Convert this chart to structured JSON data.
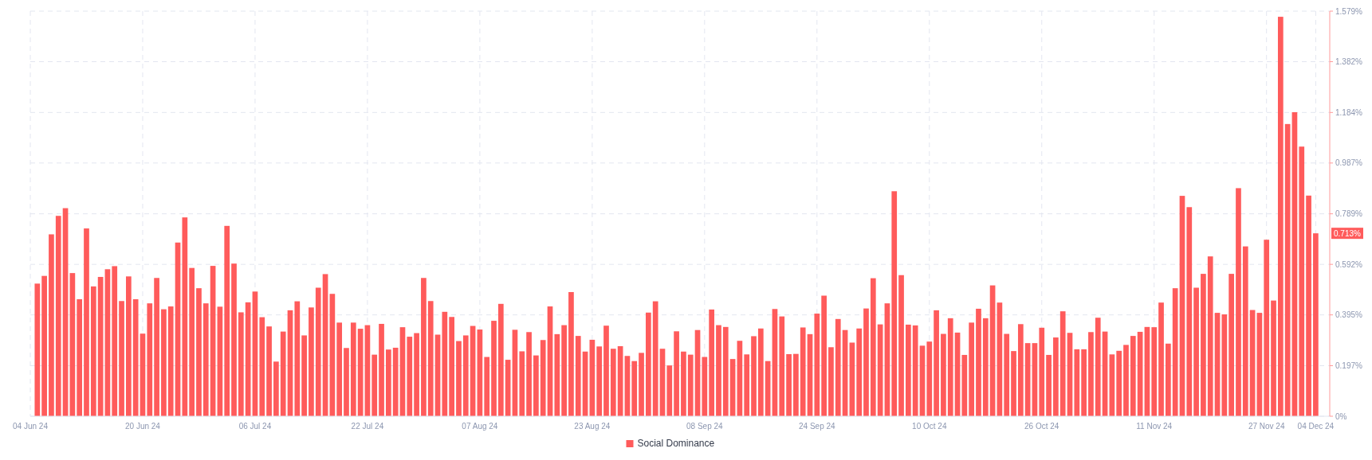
{
  "chart_data": {
    "type": "bar",
    "x": [
      "2024-06-05",
      "2024-06-06",
      "2024-06-07",
      "2024-06-08",
      "2024-06-09",
      "2024-06-10",
      "2024-06-11",
      "2024-06-12",
      "2024-06-13",
      "2024-06-14",
      "2024-06-15",
      "2024-06-16",
      "2024-06-17",
      "2024-06-18",
      "2024-06-19",
      "2024-06-20",
      "2024-06-21",
      "2024-06-22",
      "2024-06-23",
      "2024-06-24",
      "2024-06-25",
      "2024-06-26",
      "2024-06-27",
      "2024-06-28",
      "2024-06-29",
      "2024-06-30",
      "2024-07-01",
      "2024-07-02",
      "2024-07-03",
      "2024-07-04",
      "2024-07-05",
      "2024-07-06",
      "2024-07-07",
      "2024-07-08",
      "2024-07-09",
      "2024-07-10",
      "2024-07-11",
      "2024-07-12",
      "2024-07-13",
      "2024-07-14",
      "2024-07-15",
      "2024-07-16",
      "2024-07-17",
      "2024-07-18",
      "2024-07-19",
      "2024-07-20",
      "2024-07-21",
      "2024-07-22",
      "2024-07-23",
      "2024-07-24",
      "2024-07-25",
      "2024-07-26",
      "2024-07-27",
      "2024-07-28",
      "2024-07-29",
      "2024-07-30",
      "2024-07-31",
      "2024-08-01",
      "2024-08-02",
      "2024-08-03",
      "2024-08-04",
      "2024-08-05",
      "2024-08-06",
      "2024-08-07",
      "2024-08-08",
      "2024-08-09",
      "2024-08-10",
      "2024-08-11",
      "2024-08-12",
      "2024-08-13",
      "2024-08-14",
      "2024-08-15",
      "2024-08-16",
      "2024-08-17",
      "2024-08-18",
      "2024-08-19",
      "2024-08-20",
      "2024-08-21",
      "2024-08-22",
      "2024-08-23",
      "2024-08-24",
      "2024-08-25",
      "2024-08-26",
      "2024-08-27",
      "2024-08-28",
      "2024-08-29",
      "2024-08-30",
      "2024-08-31",
      "2024-09-01",
      "2024-09-02",
      "2024-09-03",
      "2024-09-04",
      "2024-09-05",
      "2024-09-06",
      "2024-09-07",
      "2024-09-08",
      "2024-09-09",
      "2024-09-10",
      "2024-09-11",
      "2024-09-12",
      "2024-09-13",
      "2024-09-14",
      "2024-09-15",
      "2024-09-16",
      "2024-09-17",
      "2024-09-18",
      "2024-09-19",
      "2024-09-20",
      "2024-09-21",
      "2024-09-22",
      "2024-09-23",
      "2024-09-24",
      "2024-09-25",
      "2024-09-26",
      "2024-09-27",
      "2024-09-28",
      "2024-09-29",
      "2024-09-30",
      "2024-10-01",
      "2024-10-02",
      "2024-10-03",
      "2024-10-04",
      "2024-10-05",
      "2024-10-06",
      "2024-10-07",
      "2024-10-08",
      "2024-10-09",
      "2024-10-10",
      "2024-10-11",
      "2024-10-12",
      "2024-10-13",
      "2024-10-14",
      "2024-10-15",
      "2024-10-16",
      "2024-10-17",
      "2024-10-18",
      "2024-10-19",
      "2024-10-20",
      "2024-10-21",
      "2024-10-22",
      "2024-10-23",
      "2024-10-24",
      "2024-10-25",
      "2024-10-26",
      "2024-10-27",
      "2024-10-28",
      "2024-10-29",
      "2024-10-30",
      "2024-10-31",
      "2024-11-01",
      "2024-11-02",
      "2024-11-03",
      "2024-11-04",
      "2024-11-05",
      "2024-11-06",
      "2024-11-07",
      "2024-11-08",
      "2024-11-09",
      "2024-11-10",
      "2024-11-11",
      "2024-11-12",
      "2024-11-13",
      "2024-11-14",
      "2024-11-15",
      "2024-11-16",
      "2024-11-17",
      "2024-11-18",
      "2024-11-19",
      "2024-11-20",
      "2024-11-21",
      "2024-11-22",
      "2024-11-23",
      "2024-11-24",
      "2024-11-25",
      "2024-11-26",
      "2024-11-27",
      "2024-11-28",
      "2024-11-29",
      "2024-11-30",
      "2024-12-01",
      "2024-12-02",
      "2024-12-03",
      "2024-12-04"
    ],
    "series": [
      {
        "name": "Social Dominance",
        "color": "#ff5b5b",
        "values": [
          0.517,
          0.547,
          0.709,
          0.781,
          0.811,
          0.558,
          0.456,
          0.732,
          0.506,
          0.543,
          0.573,
          0.585,
          0.449,
          0.545,
          0.456,
          0.322,
          0.44,
          0.539,
          0.417,
          0.428,
          0.677,
          0.775,
          0.578,
          0.499,
          0.44,
          0.586,
          0.427,
          0.742,
          0.595,
          0.405,
          0.444,
          0.486,
          0.386,
          0.35,
          0.213,
          0.33,
          0.413,
          0.448,
          0.315,
          0.424,
          0.501,
          0.554,
          0.477,
          0.365,
          0.266,
          0.365,
          0.341,
          0.355,
          0.24,
          0.36,
          0.26,
          0.267,
          0.347,
          0.31,
          0.324,
          0.539,
          0.449,
          0.318,
          0.407,
          0.387,
          0.293,
          0.315,
          0.352,
          0.338,
          0.231,
          0.372,
          0.438,
          0.22,
          0.337,
          0.253,
          0.328,
          0.237,
          0.297,
          0.428,
          0.32,
          0.355,
          0.484,
          0.313,
          0.252,
          0.298,
          0.272,
          0.353,
          0.263,
          0.273,
          0.235,
          0.215,
          0.247,
          0.404,
          0.448,
          0.263,
          0.198,
          0.331,
          0.252,
          0.24,
          0.336,
          0.231,
          0.416,
          0.355,
          0.348,
          0.223,
          0.294,
          0.241,
          0.312,
          0.342,
          0.215,
          0.418,
          0.389,
          0.242,
          0.243,
          0.346,
          0.32,
          0.4,
          0.47,
          0.269,
          0.379,
          0.336,
          0.287,
          0.342,
          0.42,
          0.538,
          0.358,
          0.44,
          0.877,
          0.55,
          0.357,
          0.354,
          0.275,
          0.291,
          0.413,
          0.321,
          0.382,
          0.326,
          0.239,
          0.365,
          0.419,
          0.382,
          0.51,
          0.443,
          0.321,
          0.254,
          0.359,
          0.285,
          0.285,
          0.345,
          0.239,
          0.307,
          0.409,
          0.325,
          0.261,
          0.261,
          0.328,
          0.384,
          0.33,
          0.241,
          0.255,
          0.278,
          0.313,
          0.329,
          0.348,
          0.347,
          0.443,
          0.283,
          0.499,
          0.859,
          0.815,
          0.501,
          0.555,
          0.623,
          0.403,
          0.397,
          0.555,
          0.889,
          0.662,
          0.414,
          0.403,
          0.688,
          0.451,
          1.557,
          1.139,
          1.185,
          1.051,
          0.86,
          0.713
        ]
      }
    ],
    "xlim": [
      "2024-06-04",
      "2024-12-06"
    ],
    "xticks": [
      {
        "value": "2024-06-04",
        "label": "04 Jun 24"
      },
      {
        "value": "2024-06-20",
        "label": "20 Jun 24"
      },
      {
        "value": "2024-07-06",
        "label": "06 Jul 24"
      },
      {
        "value": "2024-07-22",
        "label": "22 Jul 24"
      },
      {
        "value": "2024-08-07",
        "label": "07 Aug 24"
      },
      {
        "value": "2024-08-23",
        "label": "23 Aug 24"
      },
      {
        "value": "2024-09-08",
        "label": "08 Sep 24"
      },
      {
        "value": "2024-09-24",
        "label": "24 Sep 24"
      },
      {
        "value": "2024-10-10",
        "label": "10 Oct 24"
      },
      {
        "value": "2024-10-26",
        "label": "26 Oct 24"
      },
      {
        "value": "2024-11-11",
        "label": "11 Nov 24"
      },
      {
        "value": "2024-11-27",
        "label": "27 Nov 24"
      },
      {
        "value": "2024-12-04",
        "label": "04 Dec 24"
      }
    ],
    "ylim": [
      0,
      1.579
    ],
    "yticks": [
      {
        "value": 0,
        "label": "0%"
      },
      {
        "value": 0.197,
        "label": "0.197%"
      },
      {
        "value": 0.395,
        "label": "0.395%"
      },
      {
        "value": 0.592,
        "label": "0.592%"
      },
      {
        "value": 0.789,
        "label": "0.789%"
      },
      {
        "value": 0.987,
        "label": "0.987%"
      },
      {
        "value": 1.184,
        "label": "1.184%"
      },
      {
        "value": 1.382,
        "label": "1.382%"
      },
      {
        "value": 1.579,
        "label": "1.579%"
      }
    ],
    "annotations": [
      {
        "text": "0.713%",
        "x": "2024-12-04",
        "y": 0.713
      }
    ],
    "grid": true,
    "legend": "bottom"
  }
}
